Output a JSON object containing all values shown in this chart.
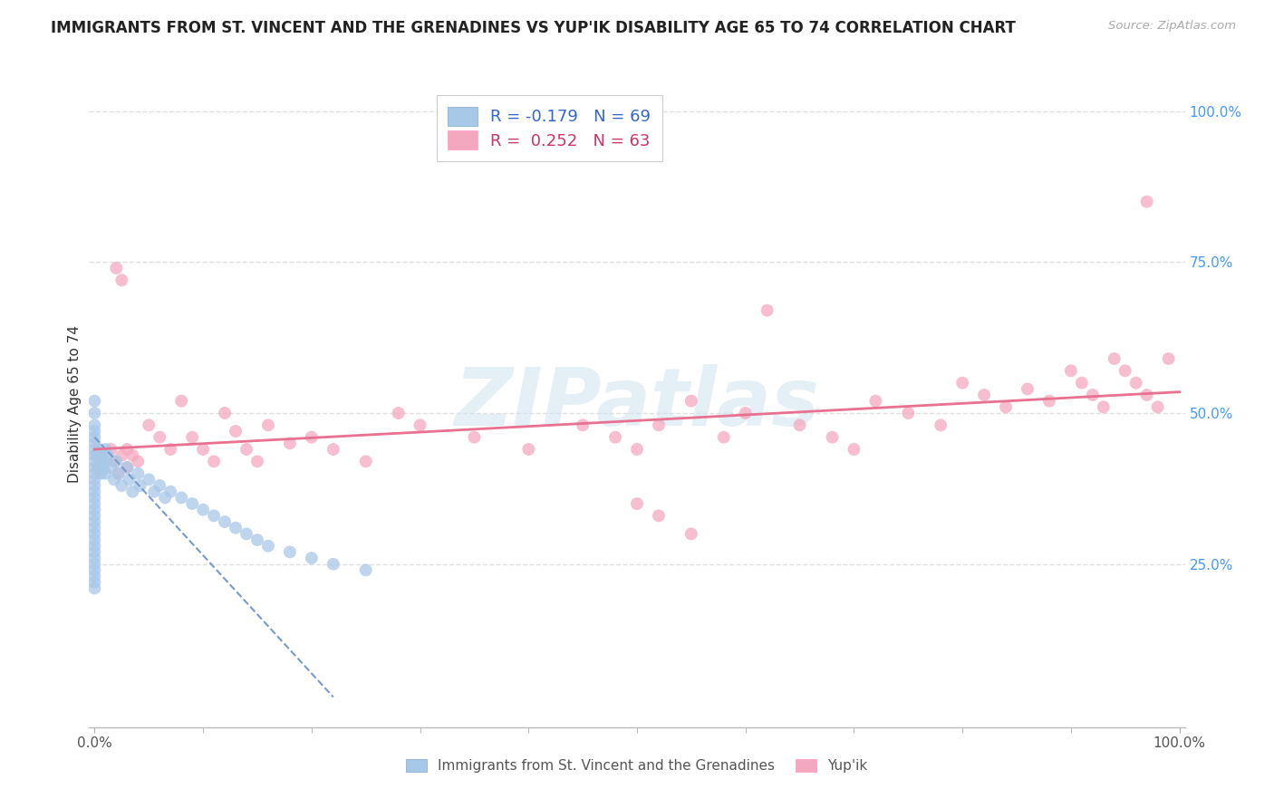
{
  "title": "IMMIGRANTS FROM ST. VINCENT AND THE GRENADINES VS YUP'IK DISABILITY AGE 65 TO 74 CORRELATION CHART",
  "source": "Source: ZipAtlas.com",
  "ylabel": "Disability Age 65 to 74",
  "watermark_line1": "ZIP",
  "watermark_line2": "atlas",
  "legend_blue_text": "R = -0.179   N = 69",
  "legend_pink_text": "R =  0.252   N = 63",
  "legend_bottom_blue": "Immigrants from St. Vincent and the Grenadines",
  "legend_bottom_pink": "Yup'ik",
  "blue_scatter_x": [
    0.0,
    0.0,
    0.0,
    0.0,
    0.0,
    0.0,
    0.0,
    0.0,
    0.0,
    0.0,
    0.0,
    0.0,
    0.0,
    0.0,
    0.0,
    0.0,
    0.0,
    0.0,
    0.0,
    0.0,
    0.0,
    0.0,
    0.0,
    0.0,
    0.0,
    0.0,
    0.0,
    0.0,
    0.0,
    0.0,
    0.002,
    0.003,
    0.004,
    0.005,
    0.006,
    0.007,
    0.008,
    0.01,
    0.01,
    0.01,
    0.012,
    0.015,
    0.018,
    0.02,
    0.022,
    0.025,
    0.03,
    0.032,
    0.035,
    0.04,
    0.042,
    0.05,
    0.055,
    0.06,
    0.065,
    0.07,
    0.08,
    0.09,
    0.1,
    0.11,
    0.12,
    0.13,
    0.14,
    0.15,
    0.16,
    0.18,
    0.2,
    0.22,
    0.25
  ],
  "blue_scatter_y": [
    0.44,
    0.43,
    0.42,
    0.41,
    0.4,
    0.39,
    0.48,
    0.47,
    0.46,
    0.45,
    0.38,
    0.37,
    0.36,
    0.35,
    0.34,
    0.33,
    0.32,
    0.31,
    0.3,
    0.29,
    0.28,
    0.27,
    0.26,
    0.25,
    0.24,
    0.23,
    0.22,
    0.5,
    0.52,
    0.21,
    0.43,
    0.41,
    0.44,
    0.42,
    0.4,
    0.43,
    0.41,
    0.44,
    0.42,
    0.4,
    0.43,
    0.41,
    0.39,
    0.42,
    0.4,
    0.38,
    0.41,
    0.39,
    0.37,
    0.4,
    0.38,
    0.39,
    0.37,
    0.38,
    0.36,
    0.37,
    0.36,
    0.35,
    0.34,
    0.33,
    0.32,
    0.31,
    0.3,
    0.29,
    0.28,
    0.27,
    0.26,
    0.25,
    0.24
  ],
  "pink_scatter_x": [
    0.02,
    0.025,
    0.03,
    0.035,
    0.04,
    0.05,
    0.06,
    0.07,
    0.08,
    0.09,
    0.1,
    0.11,
    0.12,
    0.13,
    0.14,
    0.15,
    0.16,
    0.18,
    0.2,
    0.22,
    0.25,
    0.28,
    0.3,
    0.35,
    0.4,
    0.45,
    0.48,
    0.5,
    0.52,
    0.55,
    0.58,
    0.6,
    0.62,
    0.65,
    0.68,
    0.7,
    0.72,
    0.75,
    0.78,
    0.8,
    0.82,
    0.84,
    0.86,
    0.88,
    0.9,
    0.91,
    0.92,
    0.93,
    0.94,
    0.95,
    0.96,
    0.97,
    0.98,
    0.99,
    0.015,
    0.018,
    0.022,
    0.025,
    0.03,
    0.5,
    0.52,
    0.55,
    0.97
  ],
  "pink_scatter_y": [
    0.74,
    0.72,
    0.44,
    0.43,
    0.42,
    0.48,
    0.46,
    0.44,
    0.52,
    0.46,
    0.44,
    0.42,
    0.5,
    0.47,
    0.44,
    0.42,
    0.48,
    0.45,
    0.46,
    0.44,
    0.42,
    0.5,
    0.48,
    0.46,
    0.44,
    0.48,
    0.46,
    0.44,
    0.48,
    0.52,
    0.46,
    0.5,
    0.67,
    0.48,
    0.46,
    0.44,
    0.52,
    0.5,
    0.48,
    0.55,
    0.53,
    0.51,
    0.54,
    0.52,
    0.57,
    0.55,
    0.53,
    0.51,
    0.59,
    0.57,
    0.55,
    0.53,
    0.51,
    0.59,
    0.44,
    0.42,
    0.4,
    0.43,
    0.41,
    0.35,
    0.33,
    0.3,
    0.85
  ],
  "blue_trend_x": [
    0.0,
    0.22
  ],
  "blue_trend_y": [
    0.46,
    0.03
  ],
  "pink_trend_x": [
    0.0,
    1.0
  ],
  "pink_trend_y": [
    0.44,
    0.535
  ],
  "xlim": [
    -0.005,
    1.005
  ],
  "ylim": [
    -0.02,
    1.05
  ],
  "ytick_vals": [
    0.25,
    0.5,
    0.75,
    1.0
  ],
  "ytick_labels": [
    "25.0%",
    "50.0%",
    "75.0%",
    "100.0%"
  ],
  "blue_scatter_color": "#a8c8e8",
  "pink_scatter_color": "#f4a8c0",
  "blue_trend_color": "#7799cc",
  "pink_trend_color": "#e87090",
  "grid_color": "#e0e0e0",
  "background_color": "#ffffff",
  "right_tick_color": "#4499ff",
  "title_fontsize": 12,
  "axis_label_fontsize": 11,
  "tick_fontsize": 11
}
